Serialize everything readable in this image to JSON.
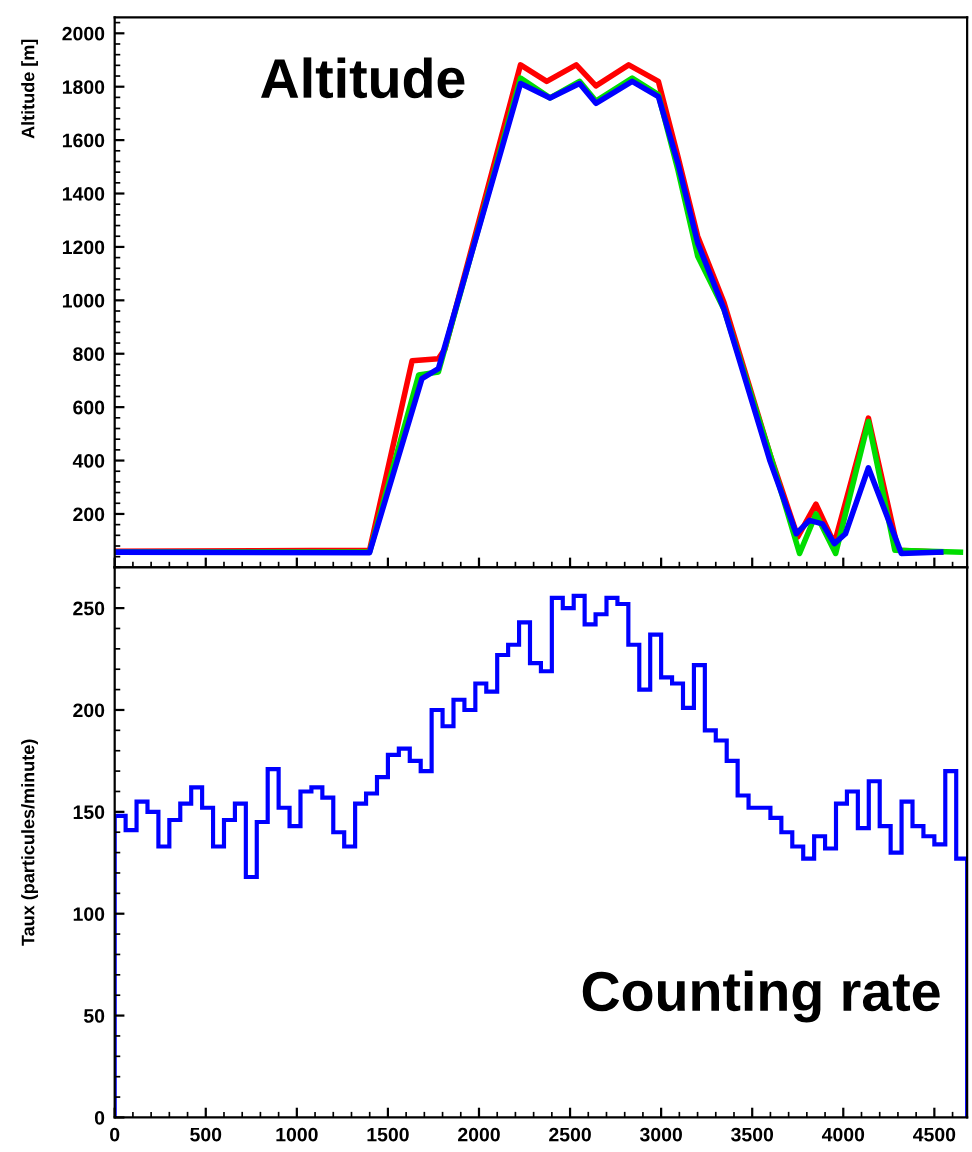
{
  "chart_data": [
    {
      "type": "line",
      "title": "Altitude",
      "ylabel": "Altitude [m]",
      "xlim": [
        0,
        4680
      ],
      "ylim": [
        0,
        2060
      ],
      "yticks": [
        200,
        400,
        600,
        800,
        1000,
        1200,
        1400,
        1600,
        1800,
        2000
      ],
      "xticks": [
        0,
        500,
        1000,
        1500,
        2000,
        2500,
        3000,
        3500,
        4000,
        4500
      ],
      "tick_labels": "y",
      "grid": false,
      "legend": false,
      "series": [
        {
          "color": "#ff0000",
          "x": [
            0,
            1399,
            1633,
            1777,
            1813,
            2228,
            2372,
            2534,
            2642,
            2822,
            2985,
            3093,
            3201,
            3345,
            3598,
            3750,
            3850,
            3951,
            4138,
            4301,
            4535
          ],
          "values": [
            60,
            64,
            774,
            781,
            818,
            1882,
            1820,
            1882,
            1803,
            1882,
            1820,
            1536,
            1239,
            992,
            423,
            114,
            237,
            89,
            559,
            64,
            57
          ]
        },
        {
          "color": "#00dd00",
          "x": [
            0,
            1399,
            1669,
            1777,
            2228,
            2390,
            2552,
            2642,
            2841,
            2985,
            3093,
            3201,
            3345,
            3598,
            3760,
            3850,
            3958,
            4138,
            4283,
            4643
          ],
          "values": [
            57,
            57,
            720,
            732,
            1832,
            1758,
            1820,
            1746,
            1832,
            1770,
            1486,
            1165,
            967,
            423,
            52,
            200,
            52,
            546,
            64,
            57
          ]
        },
        {
          "color": "#0000ff",
          "x": [
            0,
            1399,
            1687,
            1777,
            2228,
            2390,
            2552,
            2642,
            2841,
            2985,
            3093,
            3201,
            3345,
            3598,
            3742,
            3814,
            3886,
            3951,
            4012,
            4138,
            4319,
            4535
          ],
          "values": [
            57,
            55,
            707,
            744,
            1812,
            1758,
            1812,
            1738,
            1820,
            1763,
            1511,
            1214,
            967,
            398,
            126,
            176,
            163,
            89,
            126,
            373,
            52,
            57
          ]
        }
      ]
    },
    {
      "type": "histogram",
      "title": "Counting rate",
      "ylabel": "Taux (particules/minute)",
      "xlim": [
        0,
        4680
      ],
      "ylim": [
        0,
        270
      ],
      "yticks": [
        0,
        50,
        100,
        150,
        200,
        250
      ],
      "xticks": [
        0,
        500,
        1000,
        1500,
        2000,
        2500,
        3000,
        3500,
        4000,
        4500
      ],
      "grid": false,
      "color": "#0000ff",
      "bins": [
        0,
        60,
        120,
        180,
        240,
        300,
        360,
        420,
        480,
        540,
        600,
        660,
        720,
        780,
        840,
        900,
        960,
        1020,
        1080,
        1140,
        1200,
        1260,
        1320,
        1380,
        1440,
        1500,
        1560,
        1620,
        1680,
        1740,
        1800,
        1860,
        1920,
        1980,
        2040,
        2100,
        2160,
        2220,
        2280,
        2340,
        2400,
        2460,
        2520,
        2580,
        2640,
        2700,
        2760,
        2820,
        2880,
        2940,
        3000,
        3060,
        3120,
        3180,
        3240,
        3300,
        3360,
        3420,
        3480,
        3540,
        3600,
        3660,
        3720,
        3780,
        3840,
        3900,
        3960,
        4020,
        4080,
        4140,
        4200,
        4260,
        4320,
        4380,
        4440,
        4500,
        4560,
        4620,
        4680
      ],
      "values": [
        148,
        141,
        155,
        150,
        133,
        146,
        154,
        162,
        152,
        133,
        146,
        154,
        118,
        145,
        171,
        152,
        143,
        160,
        162,
        157,
        140,
        133,
        154,
        159,
        167,
        178,
        181,
        175,
        170,
        200,
        192,
        205,
        200,
        213,
        209,
        227,
        232,
        243,
        223,
        219,
        255,
        250,
        256,
        242,
        247,
        255,
        252,
        232,
        210,
        237,
        216,
        213,
        201,
        222,
        190,
        185,
        175,
        158,
        152,
        152,
        147,
        140,
        133,
        127,
        138,
        132,
        154,
        160,
        142,
        165,
        143,
        130,
        155,
        143,
        138,
        134,
        170,
        127
      ]
    }
  ]
}
